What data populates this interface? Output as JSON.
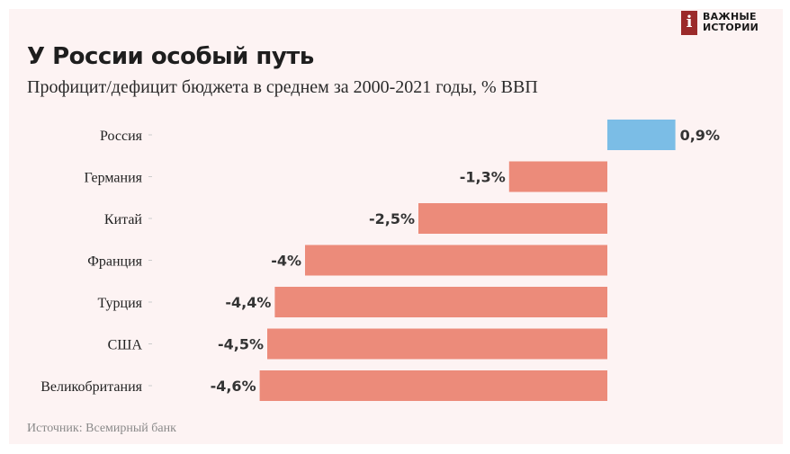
{
  "brand": {
    "mark": "i",
    "line1": "ВАЖНЫЕ",
    "line2": "ИСТОРИИ"
  },
  "source": "Источник: Всемирный банк",
  "colors": {
    "positive": "#7bbde6",
    "negative": "#ec8b7a",
    "background": "#fdf3f3"
  },
  "chart_data": {
    "type": "bar",
    "orientation": "horizontal",
    "title": "У России особый путь",
    "subtitle": "Профицит/дефицит бюджета в среднем за 2000-2021 годы, % ВВП",
    "categories": [
      "Россия",
      "Германия",
      "Китай",
      "Франция",
      "Турция",
      "США",
      "Великобритания"
    ],
    "values": [
      0.9,
      -1.3,
      -2.5,
      -4,
      -4.4,
      -4.5,
      -4.6
    ],
    "data_labels": [
      "0,9%",
      "-1,3%",
      "-2,5%",
      "-4%",
      "-4,4%",
      "-4,5%",
      "-4,6%"
    ],
    "xlim": [
      -4.6,
      0.9
    ],
    "grid": false,
    "legend": "none"
  }
}
